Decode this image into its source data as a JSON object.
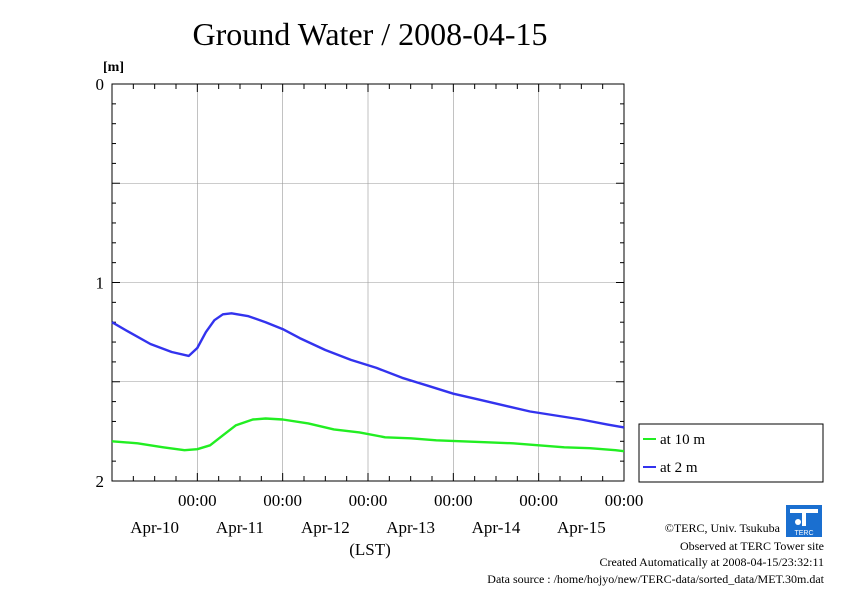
{
  "chart_data": {
    "type": "line",
    "title": "Ground Water / 2008-04-15",
    "ylabel": "[m]",
    "xlabel": "(LST)",
    "ylim": [
      0,
      2
    ],
    "y_inverted": true,
    "y_ticks": [
      "0",
      "1",
      "2"
    ],
    "x_range_days": [
      0,
      6
    ],
    "x_midnight_ticks": [
      {
        "time": "00:00",
        "day": "Apr-10"
      },
      {
        "time": "00:00",
        "day": "Apr-11"
      },
      {
        "time": "00:00",
        "day": "Apr-12"
      },
      {
        "time": "00:00",
        "day": "Apr-13"
      },
      {
        "time": "00:00",
        "day": "Apr-14"
      },
      {
        "time": "00:00",
        "day": "Apr-15"
      }
    ],
    "grid": true,
    "legend_position": "right",
    "series": [
      {
        "name": "at 10 m",
        "color": "#22ee22",
        "points": [
          [
            0,
            1.8
          ],
          [
            0.3,
            1.81
          ],
          [
            0.6,
            1.83
          ],
          [
            0.85,
            1.845
          ],
          [
            1.0,
            1.84
          ],
          [
            1.15,
            1.82
          ],
          [
            1.3,
            1.77
          ],
          [
            1.45,
            1.72
          ],
          [
            1.65,
            1.69
          ],
          [
            1.8,
            1.685
          ],
          [
            2.0,
            1.69
          ],
          [
            2.3,
            1.71
          ],
          [
            2.6,
            1.74
          ],
          [
            2.9,
            1.755
          ],
          [
            3.2,
            1.78
          ],
          [
            3.5,
            1.785
          ],
          [
            3.8,
            1.795
          ],
          [
            4.1,
            1.8
          ],
          [
            4.4,
            1.805
          ],
          [
            4.7,
            1.81
          ],
          [
            5.0,
            1.82
          ],
          [
            5.3,
            1.83
          ],
          [
            5.6,
            1.835
          ],
          [
            5.9,
            1.845
          ],
          [
            6.0,
            1.85
          ]
        ]
      },
      {
        "name": "at 2 m",
        "color": "#3333ee",
        "points": [
          [
            0,
            1.2
          ],
          [
            0.2,
            1.25
          ],
          [
            0.45,
            1.31
          ],
          [
            0.7,
            1.35
          ],
          [
            0.9,
            1.37
          ],
          [
            1.0,
            1.33
          ],
          [
            1.1,
            1.25
          ],
          [
            1.2,
            1.19
          ],
          [
            1.3,
            1.16
          ],
          [
            1.4,
            1.155
          ],
          [
            1.6,
            1.17
          ],
          [
            1.8,
            1.2
          ],
          [
            2.0,
            1.235
          ],
          [
            2.2,
            1.28
          ],
          [
            2.5,
            1.34
          ],
          [
            2.8,
            1.39
          ],
          [
            3.1,
            1.43
          ],
          [
            3.4,
            1.48
          ],
          [
            3.7,
            1.52
          ],
          [
            4.0,
            1.56
          ],
          [
            4.3,
            1.59
          ],
          [
            4.6,
            1.62
          ],
          [
            4.9,
            1.65
          ],
          [
            5.2,
            1.67
          ],
          [
            5.5,
            1.69
          ],
          [
            5.8,
            1.715
          ],
          [
            6.0,
            1.73
          ]
        ]
      }
    ]
  },
  "footer": {
    "credit": "©TERC, Univ. Tsukuba",
    "observed": "Observed at TERC Tower site",
    "created": "Created Automatically at 2008-04-15/23:32:11",
    "source": "Data source : /home/hojyo/new/TERC-data/sorted_data/MET.30m.dat",
    "logo_text": "TERC"
  }
}
